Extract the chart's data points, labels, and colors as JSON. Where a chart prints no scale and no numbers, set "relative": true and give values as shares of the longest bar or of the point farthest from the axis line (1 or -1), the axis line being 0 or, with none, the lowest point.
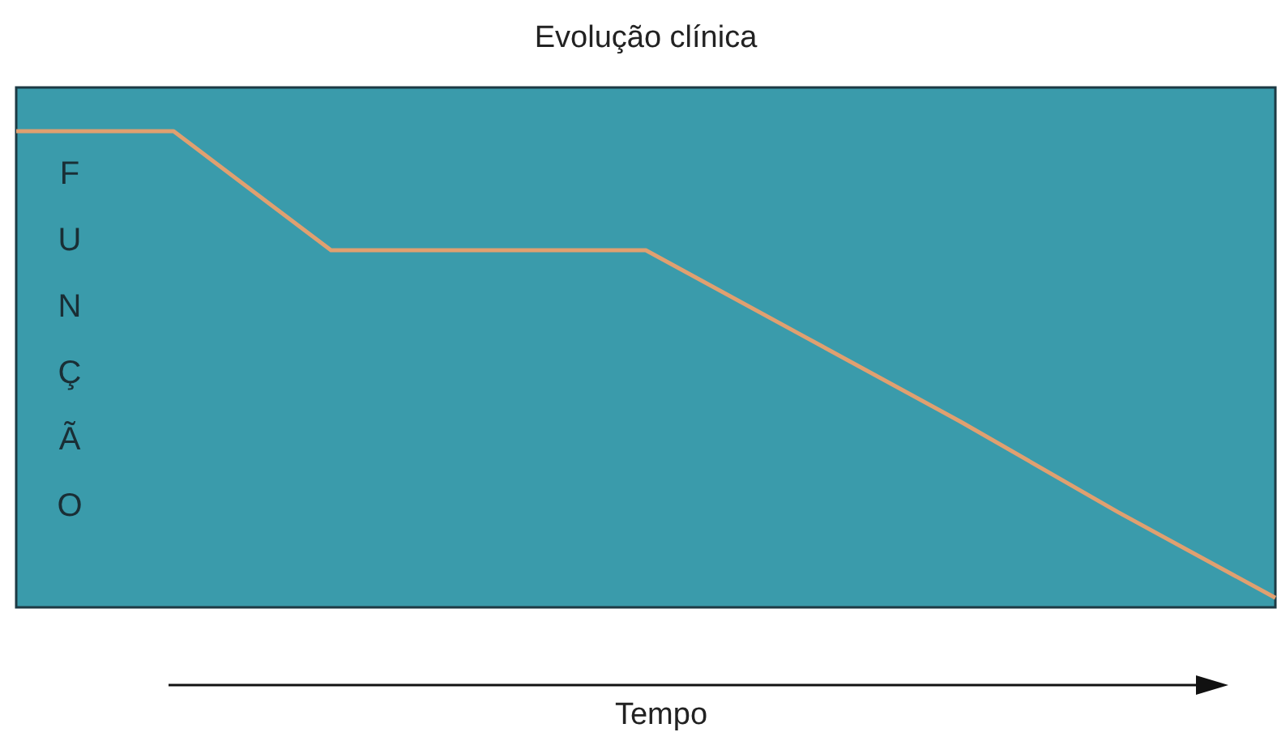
{
  "chart_data": {
    "type": "line",
    "title": "Evolução clínica",
    "xlabel": "Tempo",
    "ylabel": "FUNÇÃO",
    "relative": true,
    "grid": false,
    "legend": false,
    "marker": "none",
    "line_style": "solid",
    "categories": [
      null,
      null,
      null,
      null,
      null,
      null,
      null,
      null,
      null
    ],
    "series": [
      {
        "color": "#e0a070",
        "values": [
          1,
          1,
          0.75,
          0.75,
          0.75,
          0.57,
          0.39,
          0.2,
          0.02
        ]
      }
    ]
  }
}
